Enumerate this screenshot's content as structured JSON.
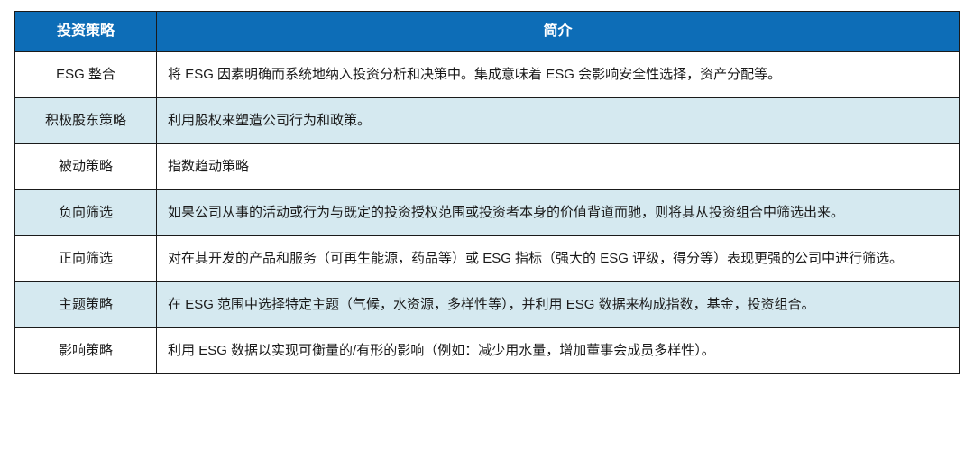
{
  "table": {
    "header_bg": "#0d6db7",
    "header_text_color": "#ffffff",
    "alt_row_bg": "#d5e9f0",
    "border_color": "#1a1a1a",
    "columns": [
      {
        "label": "投资策略",
        "width": "15%"
      },
      {
        "label": "简介",
        "width": "85%"
      }
    ],
    "rows": [
      {
        "strategy": "ESG 整合",
        "desc": "将 ESG 因素明确而系统地纳入投资分析和决策中。集成意味着 ESG 会影响安全性选择，资产分配等。",
        "alt": false
      },
      {
        "strategy": "积极股东策略",
        "desc": "利用股权来塑造公司行为和政策。",
        "alt": true
      },
      {
        "strategy": "被动策略",
        "desc": "指数趋动策略",
        "alt": false
      },
      {
        "strategy": "负向筛选",
        "desc": "如果公司从事的活动或行为与既定的投资授权范围或投资者本身的价值背道而驰，则将其从投资组合中筛选出来。",
        "alt": true
      },
      {
        "strategy": "正向筛选",
        "desc": "对在其开发的产品和服务（可再生能源，药品等）或 ESG 指标（强大的 ESG 评级，得分等）表现更强的公司中进行筛选。",
        "alt": false
      },
      {
        "strategy": "主题策略",
        "desc": "在 ESG 范围中选择特定主题（气候，水资源，多样性等），并利用 ESG 数据来构成指数，基金，投资组合。",
        "alt": true
      },
      {
        "strategy": "影响策略",
        "desc": "利用 ESG 数据以实现可衡量的/有形的影响（例如：减少用水量，增加董事会成员多样性）。",
        "alt": false
      }
    ]
  }
}
